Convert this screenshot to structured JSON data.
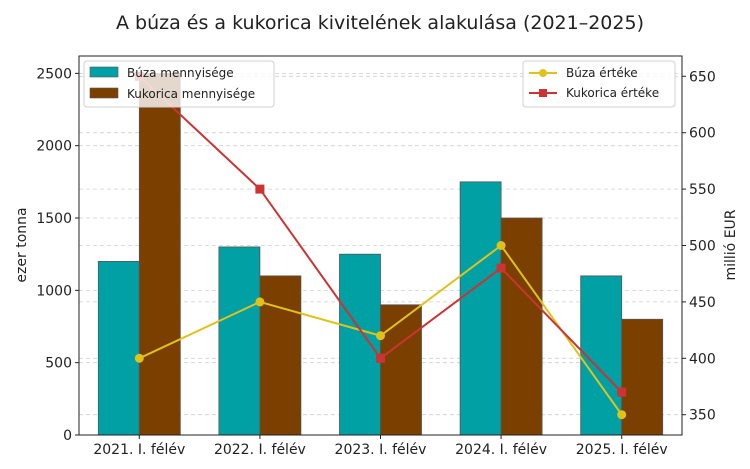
{
  "chart_data": {
    "type": "bar",
    "title": "A búza és a kukorica kivitelének alakulása (2021–2025)",
    "categories": [
      "2021. I. félév",
      "2022. I. félév",
      "2023. I. félév",
      "2024. I. félév",
      "2025. I. félév"
    ],
    "ylabel_left": "ezer tonna",
    "ylabel_right": "millió EUR",
    "ylim_left": [
      0,
      2620
    ],
    "ylim_right": [
      332,
      668
    ],
    "yticks_left": [
      0,
      500,
      1000,
      1500,
      2000,
      2500
    ],
    "yticks_right": [
      350,
      400,
      450,
      500,
      550,
      600,
      650
    ],
    "grid": true,
    "bar_series": [
      {
        "name": "Búza mennyisége",
        "color": "#00a0a4",
        "values": [
          1200,
          1300,
          1250,
          1750,
          1100
        ]
      },
      {
        "name": "Kukorica mennyisége",
        "color": "#7b3f00",
        "values": [
          2500,
          1100,
          900,
          1500,
          800
        ]
      }
    ],
    "line_series": [
      {
        "name": "Búza értéke",
        "color": "#e0c21a",
        "marker": "circle",
        "values": [
          400,
          450,
          420,
          500,
          350
        ]
      },
      {
        "name": "Kukorica értéke",
        "color": "#cc3333",
        "marker": "square",
        "values": [
          650,
          550,
          400,
          480,
          370
        ]
      }
    ],
    "legend_bars_position": "top-left",
    "legend_lines_position": "top-right"
  }
}
